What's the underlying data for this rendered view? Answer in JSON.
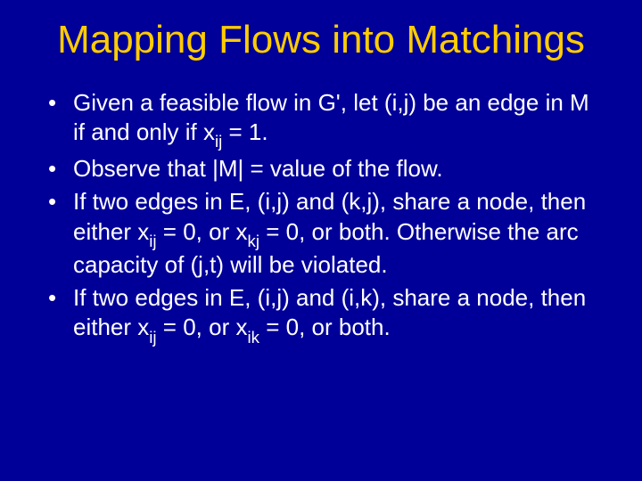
{
  "slide": {
    "background_color": "#000099",
    "title_color": "#ffcc00",
    "text_color": "#ffffff",
    "font_family": "Comic Sans MS",
    "title_fontsize": 44,
    "body_fontsize": 26,
    "title": "Mapping Flows into Matchings",
    "bullets": [
      {
        "segments": [
          {
            "t": "Given a feasible flow in G', let (i,j) be an edge in M if and only if x"
          },
          {
            "t": "ij",
            "sub": true
          },
          {
            "t": " = 1."
          }
        ]
      },
      {
        "segments": [
          {
            "t": "Observe that |M| = value of the flow."
          }
        ]
      },
      {
        "segments": [
          {
            "t": "If two edges in E, (i,j) and (k,j), share a node, then either x"
          },
          {
            "t": "ij",
            "sub": true
          },
          {
            "t": " = 0, or x"
          },
          {
            "t": "kj",
            "sub": true
          },
          {
            "t": " = 0, or both. Otherwise the arc capacity of (j,t) will be violated."
          }
        ]
      },
      {
        "segments": [
          {
            "t": "If two edges in E, (i,j) and (i,k), share a node, then either x"
          },
          {
            "t": "ij",
            "sub": true
          },
          {
            "t": " = 0, or x"
          },
          {
            "t": "ik",
            "sub": true
          },
          {
            "t": " = 0, or both."
          }
        ]
      }
    ]
  }
}
